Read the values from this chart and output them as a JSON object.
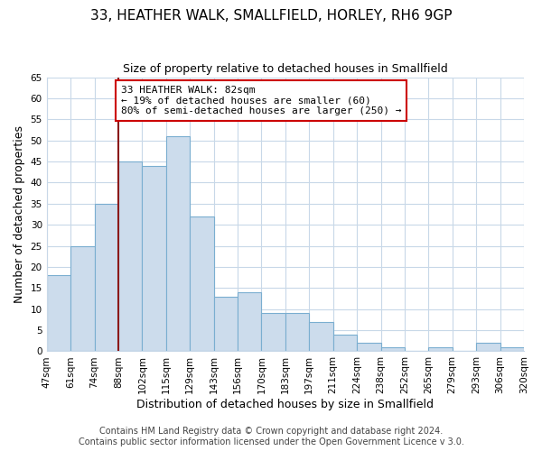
{
  "title": "33, HEATHER WALK, SMALLFIELD, HORLEY, RH6 9GP",
  "subtitle": "Size of property relative to detached houses in Smallfield",
  "xlabel": "Distribution of detached houses by size in Smallfield",
  "ylabel": "Number of detached properties",
  "footer_line1": "Contains HM Land Registry data © Crown copyright and database right 2024.",
  "footer_line2": "Contains public sector information licensed under the Open Government Licence v 3.0.",
  "bin_labels": [
    "47sqm",
    "61sqm",
    "74sqm",
    "88sqm",
    "102sqm",
    "115sqm",
    "129sqm",
    "143sqm",
    "156sqm",
    "170sqm",
    "183sqm",
    "197sqm",
    "211sqm",
    "224sqm",
    "238sqm",
    "252sqm",
    "265sqm",
    "279sqm",
    "293sqm",
    "306sqm",
    "320sqm"
  ],
  "bar_heights": [
    18,
    25,
    35,
    45,
    44,
    51,
    32,
    13,
    14,
    9,
    9,
    7,
    4,
    2,
    1,
    0,
    1,
    0,
    2,
    1
  ],
  "bar_color": "#ccdcec",
  "bar_edge_color": "#7aaed0",
  "grid_color": "#c8d8e8",
  "annotation_box_text": "33 HEATHER WALK: 82sqm\n← 19% of detached houses are smaller (60)\n80% of semi-detached houses are larger (250) →",
  "annotation_box_edge_color": "#cc0000",
  "vline_color": "#8b1a1a",
  "ylim": [
    0,
    65
  ],
  "yticks": [
    0,
    5,
    10,
    15,
    20,
    25,
    30,
    35,
    40,
    45,
    50,
    55,
    60,
    65
  ],
  "title_fontsize": 11,
  "subtitle_fontsize": 9,
  "axis_label_fontsize": 9,
  "tick_fontsize": 7.5,
  "annotation_fontsize": 8,
  "footer_fontsize": 7
}
